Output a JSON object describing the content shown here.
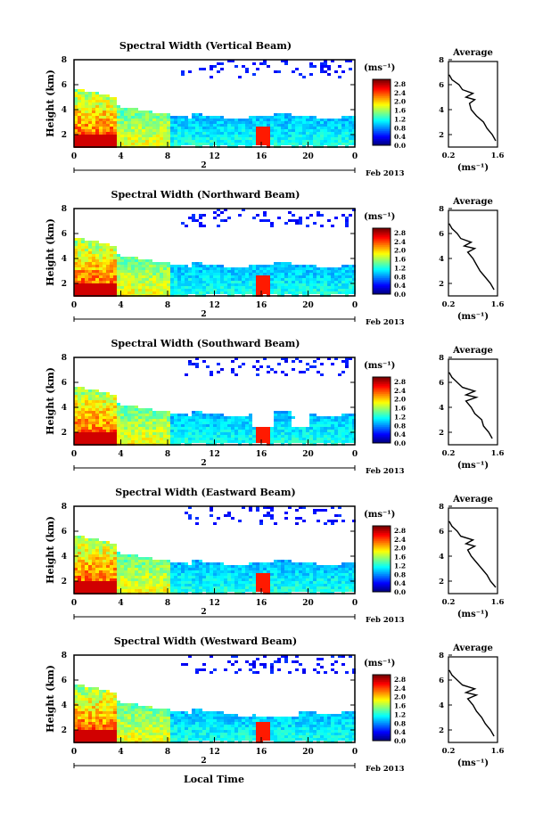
{
  "xlabel": "Local Time",
  "date_label": "Feb 2013",
  "ylabel": "Height (km)",
  "cbar_units": "(ms⁻¹)",
  "avg_title": "Average",
  "avg_xlabel": "(ms⁻¹)",
  "chart_data": [
    {
      "type": "heatmap",
      "title": "Spectral Width (Vertical Beam)",
      "x_ticks": [
        "0",
        "4",
        "8",
        "12",
        "16",
        "20",
        "0"
      ],
      "day_marker": "2",
      "y_ticks": [
        "2",
        "4",
        "6",
        "8"
      ],
      "ylim": [
        1,
        8
      ],
      "xlim": [
        0,
        24
      ],
      "colorbar_ticks": [
        "0.0",
        "0.4",
        "0.8",
        "1.2",
        "1.6",
        "2.0",
        "2.4",
        "2.8"
      ],
      "colorbar_range": [
        0,
        3
      ],
      "average_profile": {
        "x_ticks": [
          "0.2",
          "1.6"
        ],
        "y_ticks": [
          "2",
          "4",
          "6",
          "8"
        ],
        "height_km": [
          1.5,
          2.0,
          2.5,
          3.0,
          3.5,
          4.0,
          4.5,
          4.8,
          5.0,
          5.3,
          5.6,
          6.0,
          6.4,
          6.8
        ],
        "width_ms": [
          1.55,
          1.45,
          1.3,
          1.2,
          1.0,
          0.85,
          0.8,
          0.95,
          0.7,
          0.9,
          0.6,
          0.5,
          0.3,
          0.22
        ]
      }
    },
    {
      "type": "heatmap",
      "title": "Spectral Width (Northward Beam)",
      "x_ticks": [
        "0",
        "4",
        "8",
        "12",
        "16",
        "20",
        "0"
      ],
      "day_marker": "2",
      "y_ticks": [
        "2",
        "4",
        "6",
        "8"
      ],
      "ylim": [
        1,
        8
      ],
      "xlim": [
        0,
        24
      ],
      "colorbar_ticks": [
        "0.0",
        "0.4",
        "0.8",
        "1.2",
        "1.6",
        "2.0",
        "2.4",
        "2.8"
      ],
      "colorbar_range": [
        0,
        3
      ],
      "average_profile": {
        "x_ticks": [
          "0.2",
          "1.6"
        ],
        "y_ticks": [
          "2",
          "4",
          "6",
          "8"
        ],
        "height_km": [
          1.5,
          2.0,
          2.5,
          3.0,
          3.5,
          4.0,
          4.5,
          4.8,
          5.0,
          5.3,
          5.6,
          6.0,
          6.4,
          6.8
        ],
        "width_ms": [
          1.5,
          1.4,
          1.25,
          1.1,
          1.0,
          0.9,
          0.75,
          0.95,
          0.65,
          0.85,
          0.55,
          0.45,
          0.3,
          0.22
        ]
      }
    },
    {
      "type": "heatmap",
      "title": "Spectral Width (Southward Beam)",
      "x_ticks": [
        "0",
        "4",
        "8",
        "12",
        "16",
        "20",
        "0"
      ],
      "day_marker": "2",
      "y_ticks": [
        "2",
        "4",
        "6",
        "8"
      ],
      "ylim": [
        1,
        8
      ],
      "xlim": [
        0,
        24
      ],
      "colorbar_ticks": [
        "0.0",
        "0.4",
        "0.8",
        "1.2",
        "1.6",
        "2.0",
        "2.4",
        "2.8"
      ],
      "colorbar_range": [
        0,
        3
      ],
      "average_profile": {
        "x_ticks": [
          "0.2",
          "1.6"
        ],
        "y_ticks": [
          "2",
          "4",
          "6",
          "8"
        ],
        "height_km": [
          1.5,
          2.0,
          2.5,
          3.0,
          3.5,
          4.0,
          4.5,
          4.8,
          5.0,
          5.3,
          5.6,
          6.0,
          6.4,
          6.8
        ],
        "width_ms": [
          1.45,
          1.35,
          1.2,
          1.15,
          0.95,
          0.85,
          0.7,
          1.0,
          0.7,
          0.95,
          0.6,
          0.45,
          0.3,
          0.22
        ]
      }
    },
    {
      "type": "heatmap",
      "title": "Spectral Width (Eastward Beam)",
      "x_ticks": [
        "0",
        "4",
        "8",
        "12",
        "16",
        "20",
        "0"
      ],
      "day_marker": "2",
      "y_ticks": [
        "2",
        "4",
        "6",
        "8"
      ],
      "ylim": [
        1,
        8
      ],
      "xlim": [
        0,
        24
      ],
      "colorbar_ticks": [
        "0.0",
        "0.4",
        "0.8",
        "1.2",
        "1.6",
        "2.0",
        "2.4",
        "2.8"
      ],
      "colorbar_range": [
        0,
        3
      ],
      "average_profile": {
        "x_ticks": [
          "0.2",
          "1.6"
        ],
        "y_ticks": [
          "2",
          "4",
          "6",
          "8"
        ],
        "height_km": [
          1.5,
          2.0,
          2.5,
          3.0,
          3.5,
          4.0,
          4.5,
          4.8,
          5.0,
          5.3,
          5.6,
          6.0,
          6.4,
          6.8
        ],
        "width_ms": [
          1.55,
          1.4,
          1.3,
          1.15,
          1.0,
          0.85,
          0.75,
          0.95,
          0.7,
          0.9,
          0.55,
          0.45,
          0.3,
          0.22
        ]
      }
    },
    {
      "type": "heatmap",
      "title": "Spectral Width (Westward Beam)",
      "x_ticks": [
        "0",
        "4",
        "8",
        "12",
        "16",
        "20",
        "0"
      ],
      "day_marker": "2",
      "y_ticks": [
        "2",
        "4",
        "6",
        "8"
      ],
      "ylim": [
        1,
        8
      ],
      "xlim": [
        0,
        24
      ],
      "colorbar_ticks": [
        "0.0",
        "0.4",
        "0.8",
        "1.2",
        "1.6",
        "2.0",
        "2.4",
        "2.8"
      ],
      "colorbar_range": [
        0,
        3
      ],
      "average_profile": {
        "x_ticks": [
          "0.2",
          "1.6"
        ],
        "y_ticks": [
          "2",
          "4",
          "6",
          "8"
        ],
        "height_km": [
          1.5,
          2.0,
          2.5,
          3.0,
          3.5,
          4.0,
          4.5,
          4.8,
          5.0,
          5.3,
          5.6,
          6.0,
          6.4,
          6.8
        ],
        "width_ms": [
          1.5,
          1.4,
          1.25,
          1.15,
          1.0,
          0.9,
          0.75,
          1.0,
          0.7,
          0.95,
          0.6,
          0.45,
          0.3,
          0.22
        ]
      }
    }
  ]
}
